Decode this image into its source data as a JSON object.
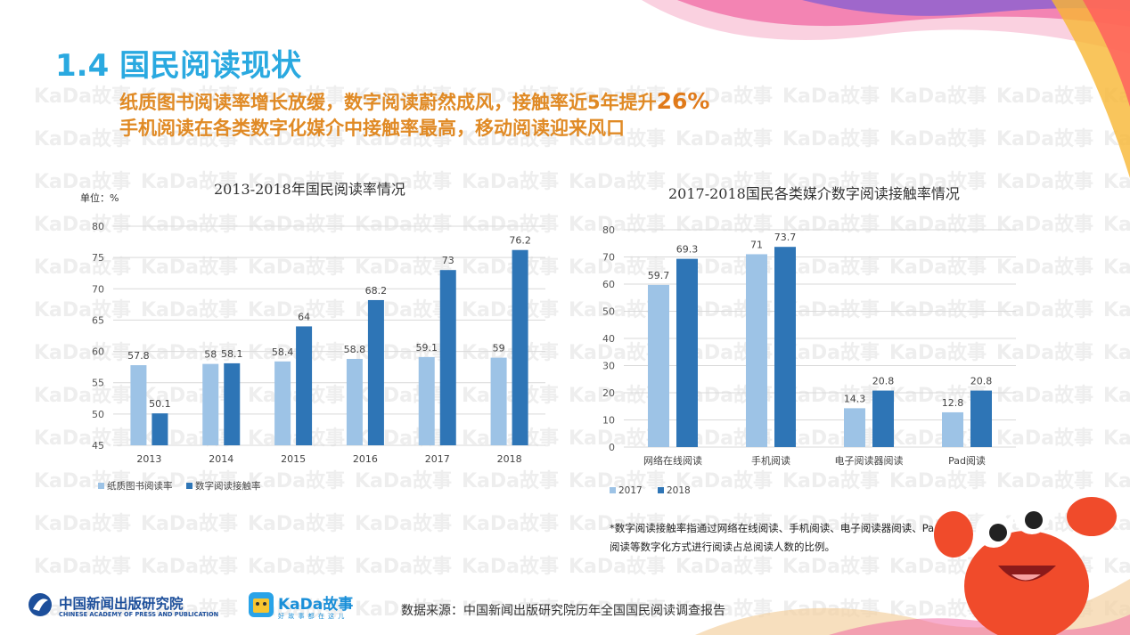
{
  "page": {
    "title": "1.4 国民阅读现状",
    "subtitle1": "纸质图书阅读率增长放缓，数字阅读蔚然成风，接触率近5年提升",
    "subtitle1_highlight": "26%",
    "subtitle2": "手机阅读在各类数字化媒介中接触率最高，移动阅读迎来风口",
    "watermark": "KaDa故事",
    "note": "*数字阅读接触率指通过网络在线阅读、手机阅读、电子阅读器阅读、Pad阅读等数字化方式进行阅读占总阅读人数的比例。",
    "source": "数据来源：中国新闻出版研究院历年全国国民阅读调查报告",
    "logo_cn": "中国新闻出版研究院",
    "logo_en": "CHINESE ACADEMY OF PRESS AND PUBLICATION",
    "kada_name": "KaDa故事",
    "kada_tagline": "好 故 事 都 在 这 儿"
  },
  "colors": {
    "title": "#2aa9e0",
    "subtitle": "#e08a25",
    "series_light": "#9dc3e6",
    "series_dark": "#2e75b6",
    "grid": "#d9d9d9"
  },
  "chart_data": [
    {
      "type": "bar",
      "title": "2013-2018年国民阅读率情况",
      "unit_label": "单位：%",
      "categories": [
        "2013",
        "2014",
        "2015",
        "2016",
        "2017",
        "2018"
      ],
      "series": [
        {
          "name": "纸质图书阅读率",
          "values": [
            57.8,
            58,
            58.4,
            58.8,
            59.1,
            59
          ],
          "color": "#9dc3e6"
        },
        {
          "name": "数字阅读接触率",
          "values": [
            50.1,
            58.1,
            64,
            68.2,
            73,
            76.2
          ],
          "color": "#2e75b6"
        }
      ],
      "ylim": [
        45,
        80
      ],
      "yticks": [
        45,
        50,
        55,
        60,
        65,
        70,
        75,
        80
      ],
      "grid": true,
      "legend": "bottom-left"
    },
    {
      "type": "bar",
      "title": "2017-2018国民各类媒介数字阅读接触率情况",
      "categories": [
        "网络在线阅读",
        "手机阅读",
        "电子阅读器阅读",
        "Pad阅读"
      ],
      "series": [
        {
          "name": "2017",
          "values": [
            59.7,
            71,
            14.3,
            12.8
          ],
          "color": "#9dc3e6"
        },
        {
          "name": "2018",
          "values": [
            69.3,
            73.7,
            20.8,
            20.8
          ],
          "color": "#2e75b6"
        }
      ],
      "ylim": [
        0,
        80
      ],
      "yticks": [
        0,
        10,
        20,
        30,
        40,
        50,
        60,
        70,
        80
      ],
      "grid": true,
      "legend": "bottom-left"
    }
  ]
}
